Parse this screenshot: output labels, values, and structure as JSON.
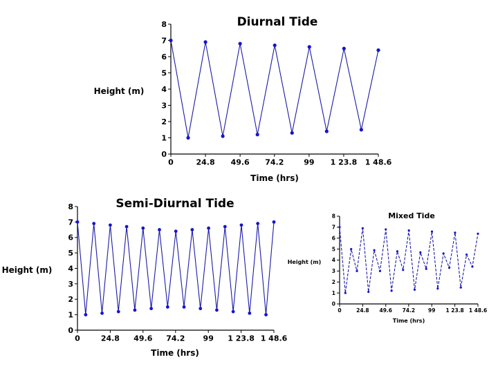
{
  "chart_data": [
    {
      "id": "diurnal",
      "type": "line",
      "title": "Diurnal Tide",
      "xlabel": "Time (hrs)",
      "ylabel": "Height (m)",
      "xlim": [
        0,
        148.6
      ],
      "ylim": [
        0,
        8
      ],
      "x_ticks": [
        0,
        24.8,
        49.6,
        74.2,
        99,
        123.8,
        148.6
      ],
      "x_tick_labels": [
        "0",
        "24.8",
        "49.6",
        "74.2",
        "99",
        "1 23.8",
        "1 48.6"
      ],
      "y_ticks": [
        0,
        1,
        2,
        3,
        4,
        5,
        6,
        7,
        8
      ],
      "y_tick_labels": [
        "0",
        "1",
        "2",
        "3",
        "4",
        "5",
        "6",
        "7",
        "8"
      ],
      "series": [
        {
          "x": [
            0,
            12.4,
            24.8,
            37.2,
            49.6,
            62,
            74.4,
            86.8,
            99.2,
            111.6,
            124,
            136.4,
            148.6
          ],
          "y": [
            7.0,
            1.0,
            6.9,
            1.1,
            6.8,
            1.2,
            6.7,
            1.3,
            6.6,
            1.4,
            6.5,
            1.5,
            6.4
          ]
        }
      ],
      "grid": false,
      "legend": "none"
    },
    {
      "id": "semidiurnal",
      "type": "line",
      "title": "Semi-Diurnal Tide",
      "xlabel": "Time (hrs)",
      "ylabel": "Height (m)",
      "xlim": [
        0,
        148.6
      ],
      "ylim": [
        0,
        8
      ],
      "x_ticks": [
        0,
        24.8,
        49.6,
        74.2,
        99,
        123.8,
        148.6
      ],
      "x_tick_labels": [
        "0",
        "24.8",
        "49.6",
        "74.2",
        "99",
        "1 23.8",
        "1 48.6"
      ],
      "y_ticks": [
        0,
        1,
        2,
        3,
        4,
        5,
        6,
        7,
        8
      ],
      "y_tick_labels": [
        "0",
        "1",
        "2",
        "3",
        "4",
        "5",
        "6",
        "7",
        "8"
      ],
      "series": [
        {
          "x": [
            0,
            6.2,
            12.4,
            18.6,
            24.8,
            31,
            37.2,
            43.4,
            49.6,
            55.8,
            62,
            68.2,
            74.4,
            80.6,
            86.8,
            93,
            99.2,
            105.4,
            111.6,
            117.8,
            124,
            130.2,
            136.4,
            142.6,
            148.6
          ],
          "y": [
            7.0,
            1.0,
            6.9,
            1.1,
            6.8,
            1.2,
            6.7,
            1.3,
            6.6,
            1.4,
            6.5,
            1.5,
            6.4,
            1.5,
            6.5,
            1.4,
            6.6,
            1.3,
            6.7,
            1.2,
            6.8,
            1.1,
            6.9,
            1.0,
            7.0
          ]
        }
      ],
      "grid": false,
      "legend": "none"
    },
    {
      "id": "mixed",
      "type": "line",
      "title": "Mixed Tide",
      "xlabel": "Time (hrs)",
      "ylabel": "Height (m)",
      "xlim": [
        0,
        148.6
      ],
      "ylim": [
        0,
        8
      ],
      "x_ticks": [
        0,
        24.8,
        49.6,
        74.2,
        99,
        123.8,
        148.6
      ],
      "x_tick_labels": [
        "0",
        "24.8",
        "49.6",
        "74.2",
        "99",
        "1 23.8",
        "1 48.6"
      ],
      "y_ticks": [
        0,
        1,
        2,
        3,
        4,
        5,
        6,
        7,
        8
      ],
      "y_tick_labels": [
        "0",
        "1",
        "2",
        "3",
        "4",
        "5",
        "6",
        "7",
        "8"
      ],
      "series": [
        {
          "x": [
            0,
            6.2,
            12.4,
            18.6,
            24.8,
            31,
            37.2,
            43.4,
            49.6,
            55.8,
            62,
            68.2,
            74.4,
            80.6,
            86.8,
            93,
            99.2,
            105.4,
            111.6,
            117.8,
            124,
            130.2,
            136.4,
            142.6,
            148.6
          ],
          "y": [
            7.0,
            1.0,
            5.0,
            3.0,
            6.9,
            1.1,
            4.9,
            3.0,
            6.8,
            1.2,
            4.8,
            3.1,
            6.7,
            1.3,
            4.7,
            3.2,
            6.6,
            1.4,
            4.6,
            3.3,
            6.5,
            1.5,
            4.5,
            3.4,
            6.4
          ]
        }
      ],
      "grid": false,
      "legend": "none"
    }
  ],
  "colors": {
    "line": "#1a1aa6",
    "marker": "#1414d0",
    "text": "#000000"
  }
}
